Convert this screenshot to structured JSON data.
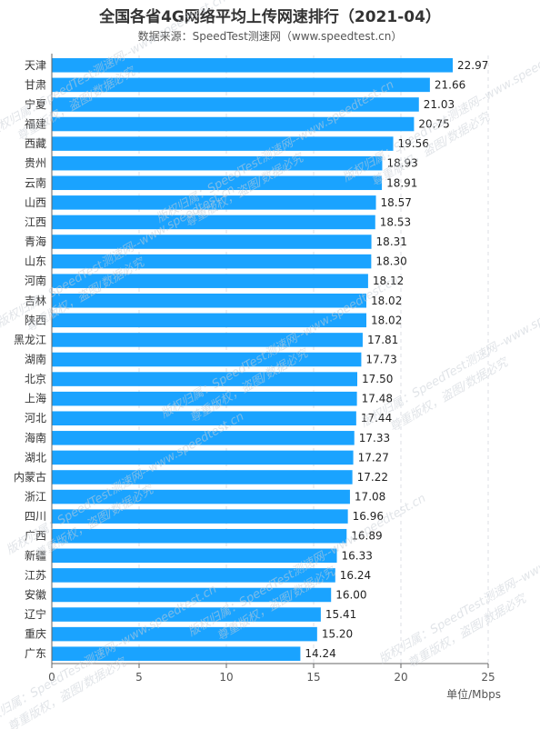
{
  "chart_data": {
    "type": "bar",
    "orientation": "horizontal",
    "title": "全国各省4G网络平均上传网速排行（2021-04）",
    "subtitle": "数据来源：SpeedTest测速网（www.speedtest.cn）",
    "xlabel": "单位/Mbps",
    "ylabel": "",
    "xlim": [
      0,
      25
    ],
    "xticks": [
      "0",
      "5",
      "10",
      "15",
      "20",
      "25"
    ],
    "grid": "vertical-dashed",
    "bar_color": "#1aa3ff",
    "categories": [
      "天津",
      "甘肃",
      "宁夏",
      "福建",
      "西藏",
      "贵州",
      "云南",
      "山西",
      "江西",
      "青海",
      "山东",
      "河南",
      "吉林",
      "陕西",
      "黑龙江",
      "湖南",
      "北京",
      "上海",
      "河北",
      "海南",
      "湖北",
      "内蒙古",
      "浙江",
      "四川",
      "广西",
      "新疆",
      "江苏",
      "安徽",
      "辽宁",
      "重庆",
      "广东"
    ],
    "values": [
      22.97,
      21.66,
      21.03,
      20.75,
      19.56,
      18.93,
      18.91,
      18.57,
      18.53,
      18.31,
      18.3,
      18.12,
      18.02,
      18.02,
      17.81,
      17.73,
      17.5,
      17.48,
      17.44,
      17.33,
      17.27,
      17.22,
      17.08,
      16.96,
      16.89,
      16.33,
      16.24,
      16.0,
      15.41,
      15.2,
      14.24
    ],
    "value_labels": [
      "22.97",
      "21.66",
      "21.03",
      "20.75",
      "19.56",
      "18.93",
      "18.91",
      "18.57",
      "18.53",
      "18.31",
      "18.30",
      "18.12",
      "18.02",
      "18.02",
      "17.81",
      "17.73",
      "17.50",
      "17.48",
      "17.44",
      "17.33",
      "17.27",
      "17.22",
      "17.08",
      "16.96",
      "16.89",
      "16.33",
      "16.24",
      "16.00",
      "15.41",
      "15.20",
      "14.24"
    ]
  },
  "watermark": {
    "line1": "版权归属：SpeedTest测速网--www.speedtest.cn",
    "line2": "尊重版权，盗图/数据必究"
  }
}
